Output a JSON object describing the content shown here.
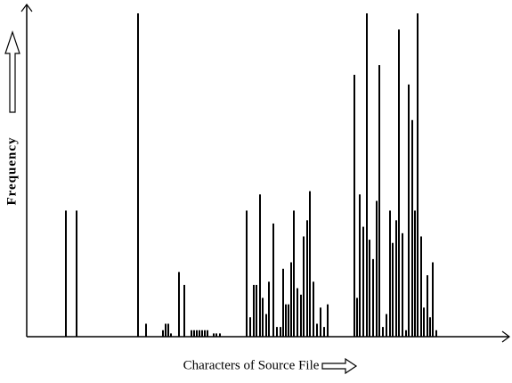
{
  "chart_data": {
    "type": "bar",
    "x_label": "Characters of Source File",
    "y_label": "Frequency",
    "color": "#000000",
    "xlim": [
      0,
      542
    ],
    "ylim": [
      0,
      100
    ],
    "x": [
      44,
      56,
      125,
      134,
      153,
      156,
      159,
      162,
      171,
      177,
      185,
      188,
      191,
      194,
      197,
      200,
      203,
      210,
      213,
      217,
      247,
      251,
      255,
      258,
      262,
      265,
      269,
      272,
      277,
      281,
      285,
      288,
      291,
      294,
      297,
      300,
      304,
      308,
      311,
      315,
      318,
      322,
      326,
      330,
      334,
      338,
      368,
      371,
      374,
      378,
      382,
      385,
      389,
      393,
      396,
      400,
      404,
      408,
      411,
      415,
      418,
      422,
      426,
      429,
      433,
      436,
      439,
      443,
      446,
      450,
      453,
      456,
      460
    ],
    "values": [
      39,
      39,
      100,
      4,
      2,
      4,
      4,
      1,
      20,
      16,
      2,
      2,
      2,
      2,
      2,
      2,
      2,
      1,
      1,
      1,
      39,
      6,
      16,
      16,
      44,
      12,
      7,
      17,
      35,
      3,
      3,
      21,
      10,
      10,
      23,
      39,
      15,
      13,
      31,
      36,
      45,
      17,
      4,
      9,
      3,
      10,
      81,
      12,
      44,
      34,
      100,
      30,
      24,
      42,
      84,
      3,
      7,
      39,
      29,
      36,
      95,
      32,
      2,
      78,
      67,
      39,
      100,
      31,
      9,
      19,
      6,
      23,
      2
    ]
  }
}
